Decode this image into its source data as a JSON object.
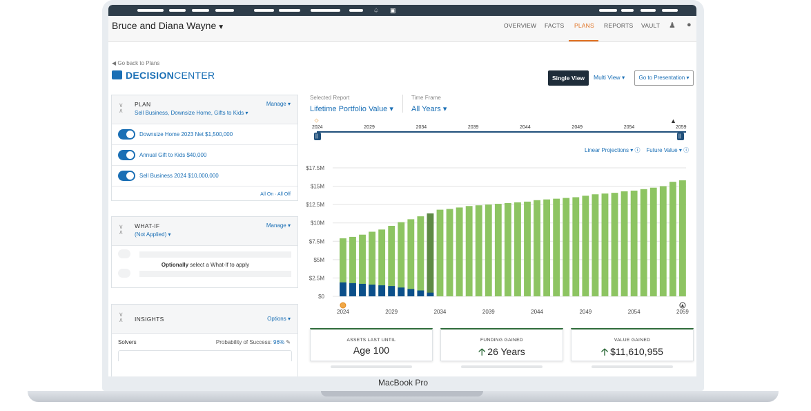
{
  "device": {
    "label": "MacBook Pro"
  },
  "header": {
    "client_name": "Bruce and Diana Wayne",
    "nav": [
      "OVERVIEW",
      "FACTS",
      "PLANS",
      "REPORTS",
      "VAULT"
    ],
    "active_nav": "PLANS"
  },
  "decision_center": {
    "back_link": "Go back to Plans",
    "title_bold": "DECISION",
    "title_light": "CENTER",
    "single_view": "Single View",
    "multi_view": "Multi View",
    "go_to_presentation": "Go to Presentation"
  },
  "plan_panel": {
    "title": "PLAN",
    "subtitle": "Sell Business, Downsize Home, Gifts to Kids",
    "manage": "Manage",
    "items": [
      {
        "label": "Downsize Home 2023 Net $1,500,000",
        "on": true
      },
      {
        "label": "Annual Gift to Kids $40,000",
        "on": true
      },
      {
        "label": "Sell Business 2024 $10,000,000",
        "on": true
      }
    ],
    "all_on_off": "All On · All Off"
  },
  "whatif_panel": {
    "title": "WHAT-IF",
    "subtitle": "(Not Applied)",
    "manage": "Manage",
    "message_bold": "Optionally",
    "message_rest": " select a What-If to apply"
  },
  "insights_panel": {
    "title": "INSIGHTS",
    "options": "Options",
    "solvers": "Solvers",
    "probability_label": "Probability of Success:",
    "probability_value": "96%"
  },
  "report": {
    "selected_report_label": "Selected Report",
    "selected_report": "Lifetime Portfolio Value",
    "time_frame_label": "Time Frame",
    "time_frame": "All Years",
    "linear_projections": "Linear Projections",
    "future_value": "Future Value"
  },
  "timeline": {
    "years": [
      "2024",
      "2029",
      "2034",
      "2039",
      "2044",
      "2049",
      "2054",
      "2059"
    ]
  },
  "chart_data": {
    "type": "bar",
    "stacked": true,
    "x": [
      2024,
      2025,
      2026,
      2027,
      2028,
      2029,
      2030,
      2031,
      2032,
      2033,
      2034,
      2035,
      2036,
      2037,
      2038,
      2039,
      2040,
      2041,
      2042,
      2043,
      2044,
      2045,
      2046,
      2047,
      2048,
      2049,
      2050,
      2051,
      2052,
      2053,
      2054,
      2055,
      2056,
      2057,
      2058,
      2059
    ],
    "xticks": [
      "2024",
      "2029",
      "2034",
      "2039",
      "2044",
      "2049",
      "2054",
      "2059"
    ],
    "yticks": [
      "$0",
      "$2.5M",
      "$5M",
      "$7.5M",
      "$10M",
      "$12.5M",
      "$15M",
      "$17.5M"
    ],
    "ylim": [
      0,
      17.5
    ],
    "highlight_year": 2033,
    "series": [
      {
        "values": [
          1.9,
          1.8,
          1.7,
          1.6,
          1.5,
          1.4,
          1.2,
          1.0,
          0.8,
          0.5,
          0,
          0,
          0,
          0,
          0,
          0,
          0,
          0,
          0,
          0,
          0,
          0,
          0,
          0,
          0,
          0,
          0,
          0,
          0,
          0,
          0,
          0,
          0,
          0,
          0,
          0
        ],
        "color": "#0b4f8a"
      },
      {
        "values": [
          7.9,
          8.1,
          8.4,
          8.8,
          9.1,
          9.6,
          10.1,
          10.5,
          10.9,
          11.3,
          11.8,
          11.9,
          12.1,
          12.3,
          12.4,
          12.5,
          12.6,
          12.7,
          12.8,
          12.9,
          13.1,
          13.2,
          13.3,
          13.4,
          13.5,
          13.7,
          13.9,
          14.0,
          14.1,
          14.3,
          14.4,
          14.6,
          14.8,
          15.0,
          15.6,
          15.8
        ],
        "color": "#8dc462"
      }
    ],
    "colors": {
      "highlight": "#5e8a45",
      "grid": "#e3e3e3"
    }
  },
  "cards": [
    {
      "label": "ASSETS LAST UNTIL",
      "value": "Age 100",
      "arrow": false
    },
    {
      "label": "FUNDING GAINED",
      "value": "26 Years",
      "arrow": true
    },
    {
      "label": "VALUE GAINED",
      "value": "$11,610,955",
      "arrow": true
    }
  ]
}
